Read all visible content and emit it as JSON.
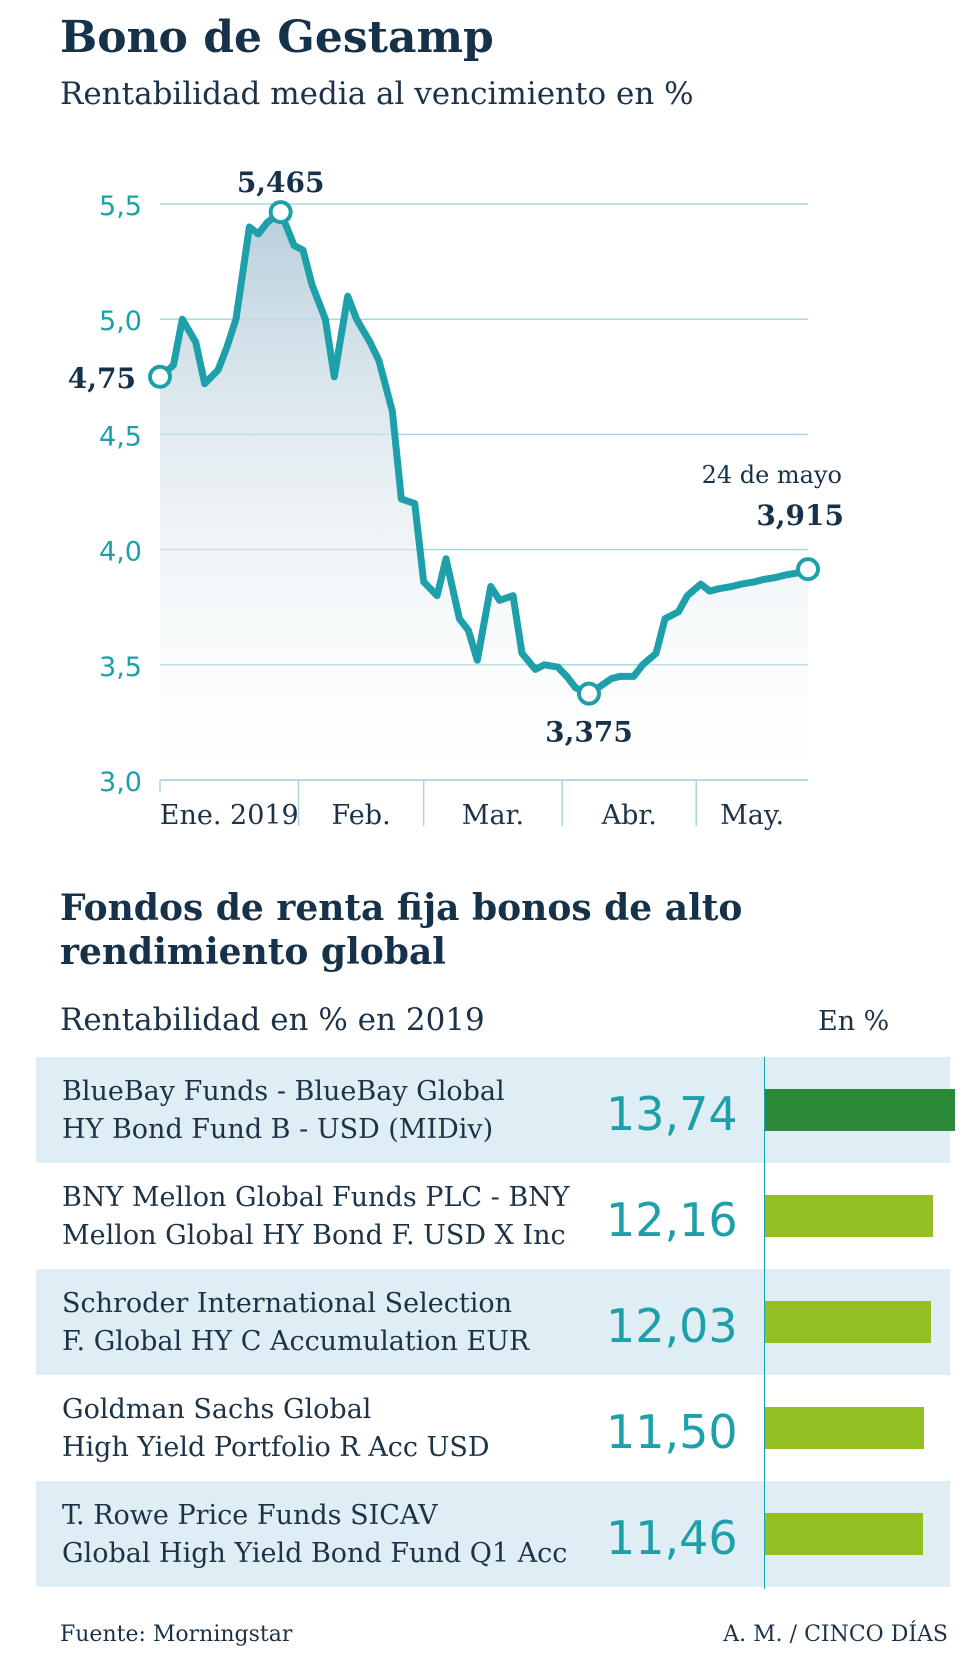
{
  "chart_data": [
    {
      "type": "line",
      "title": "Bono de Gestamp",
      "subtitle": "Rentabilidad media al vencimiento en %",
      "ylim": [
        3.0,
        5.5
      ],
      "yticks": [
        "3,0",
        "3,5",
        "4,0",
        "4,5",
        "5,0",
        "5,5"
      ],
      "ytick_values": [
        3.0,
        3.5,
        4.0,
        4.5,
        5.0,
        5.5
      ],
      "x_months": [
        "Ene. 2019",
        "Feb.",
        "Mar.",
        "Abr.",
        "May."
      ],
      "grid": true,
      "series": [
        {
          "x_days": [
            0,
            3,
            5,
            8,
            10,
            13,
            15,
            17,
            20,
            22,
            24,
            27,
            30,
            32,
            34,
            37,
            39,
            42,
            44,
            47,
            49,
            52,
            54,
            57,
            59,
            62,
            64,
            67,
            69,
            71,
            74,
            76,
            79,
            81,
            84,
            86,
            89,
            91,
            93,
            96,
            98,
            101,
            103,
            106,
            108,
            111,
            113,
            116,
            118,
            121,
            123,
            125,
            128,
            130,
            133,
            135,
            138,
            140,
            143,
            145
          ],
          "y": [
            4.75,
            4.8,
            5.0,
            4.9,
            4.72,
            4.78,
            4.88,
            5.0,
            5.4,
            5.37,
            5.42,
            5.465,
            5.32,
            5.3,
            5.15,
            5.0,
            4.75,
            5.1,
            5.0,
            4.9,
            4.82,
            4.6,
            4.22,
            4.2,
            3.86,
            3.8,
            3.96,
            3.7,
            3.65,
            3.52,
            3.84,
            3.78,
            3.8,
            3.55,
            3.48,
            3.5,
            3.49,
            3.45,
            3.4,
            3.375,
            3.4,
            3.44,
            3.45,
            3.45,
            3.5,
            3.55,
            3.7,
            3.73,
            3.8,
            3.85,
            3.82,
            3.83,
            3.84,
            3.85,
            3.86,
            3.87,
            3.88,
            3.89,
            3.9,
            3.915
          ]
        }
      ],
      "annotations": {
        "start": "4,75",
        "max": "5,465",
        "min": "3,375",
        "end": "3,915",
        "end_date": "24 de mayo"
      }
    },
    {
      "type": "bar",
      "title": "Fondos de renta fija bonos de alto rendimiento global",
      "subtitle": "Rentabilidad en % en 2019",
      "unit_label": "En %",
      "categories": [
        "BlueBay Funds - BlueBay Global HY Bond Fund B - USD (MIDiv)",
        "BNY Mellon Global Funds PLC - BNY Mellon Global HY Bond F. USD X Inc",
        "Schroder International Selection F. Global HY C Accumulation EUR",
        "Goldman Sachs Global High Yield Portfolio R Acc USD",
        "T. Rowe Price Funds SICAV Global High Yield Bond Fund Q1 Acc"
      ],
      "values": [
        13.74,
        12.16,
        12.03,
        11.5,
        11.46
      ]
    }
  ],
  "header": {
    "title": "Bono de Gestamp",
    "subtitle": "Rentabilidad media al vencimiento en %"
  },
  "funds": {
    "title": "Fondos de renta fija bonos de alto rendimiento global",
    "subtitle": "Rentabilidad en % en 2019",
    "unit": "En %",
    "rows": [
      {
        "line1": "BlueBay Funds - BlueBay Global",
        "line2": "HY Bond Fund B - USD (MIDiv)",
        "value_text": "13,74"
      },
      {
        "line1": "BNY Mellon Global Funds PLC - BNY",
        "line2": "Mellon Global HY Bond F. USD X Inc",
        "value_text": "12,16"
      },
      {
        "line1": "Schroder International Selection",
        "line2": "F. Global HY C Accumulation EUR",
        "value_text": "12,03"
      },
      {
        "line1": "Goldman Sachs Global",
        "line2": "High Yield Portfolio R Acc USD",
        "value_text": "11,50"
      },
      {
        "line1": "T. Rowe Price Funds SICAV",
        "line2": "Global High Yield Bond Fund Q1 Acc",
        "value_text": "11,46"
      }
    ]
  },
  "colors": {
    "line": "#1ea0aa",
    "axis_text": "#1ea0aa",
    "grid": "#a9d7df",
    "bar_top": "#2a8a3a",
    "bar_other": "#93bf22",
    "row_shade": "#dfeef4"
  },
  "footer": {
    "source": "Fuente: Morningstar",
    "credit": "A. M. / CINCO DÍAS"
  }
}
